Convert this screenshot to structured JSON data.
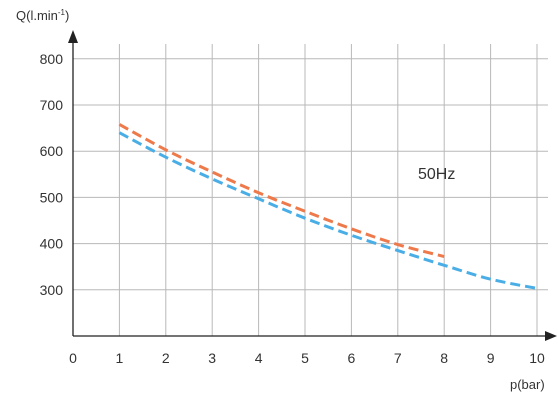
{
  "chart_data": {
    "type": "line",
    "title": "",
    "xlabel": "p(bar)",
    "ylabel": "Q(l.min",
    "ylabel_superscript": "-1",
    "ylabel_close": ")",
    "annotation": "50Hz",
    "x_ticks": [
      "0",
      "1",
      "2",
      "3",
      "4",
      "5",
      "6",
      "7",
      "8",
      "9",
      "10"
    ],
    "y_ticks": [
      "300",
      "400",
      "500",
      "600",
      "700",
      "800"
    ],
    "xlim": [
      0,
      10
    ],
    "ylim": [
      200,
      800
    ],
    "grid": true,
    "series": [
      {
        "color": "#ee7a4b",
        "dash": true,
        "x": [
          1,
          2,
          3,
          4,
          5,
          6,
          7,
          8
        ],
        "y": [
          658,
          603,
          555,
          510,
          470,
          432,
          398,
          372
        ]
      },
      {
        "color": "#4aaee6",
        "dash": true,
        "x": [
          1,
          2,
          3,
          4,
          5,
          6,
          7,
          8,
          9,
          10
        ],
        "y": [
          640,
          587,
          540,
          497,
          455,
          418,
          385,
          353,
          323,
          303
        ]
      }
    ]
  }
}
